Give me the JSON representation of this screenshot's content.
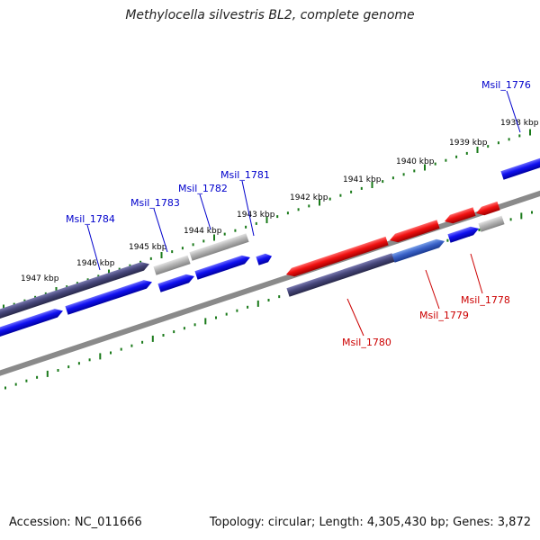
{
  "title": "Methylocella silvestris BL2, complete genome",
  "footer": {
    "accession": "Accession: NC_011666",
    "summary": "Topology: circular; Length: 4,305,430 bp; Genes: 3,872"
  },
  "colors": {
    "forward_gene": "#0a0aee",
    "reverse_gene": "#ee0a0a",
    "dark_gene": "#46467a",
    "grey_gene": "#b0b0b0",
    "backbone": "#8a8a8a",
    "tick": "#1a7a1a",
    "tick_label": "#000000",
    "forward_label": "#0000cc",
    "reverse_label": "#cc0000"
  },
  "ruler_labels": [
    "1938 kbp",
    "1939 kbp",
    "1940 kbp",
    "1941 kbp",
    "1942 kbp",
    "1943 kbp",
    "1944 kbp",
    "1945 kbp",
    "1946 kbp",
    "1947 kbp"
  ],
  "gene_labels": {
    "forward": [
      "Msil_1776",
      "Msil_1781",
      "Msil_1782",
      "Msil_1783",
      "Msil_1784"
    ],
    "reverse": [
      "Msil_1778",
      "Msil_1779",
      "Msil_1780"
    ]
  }
}
